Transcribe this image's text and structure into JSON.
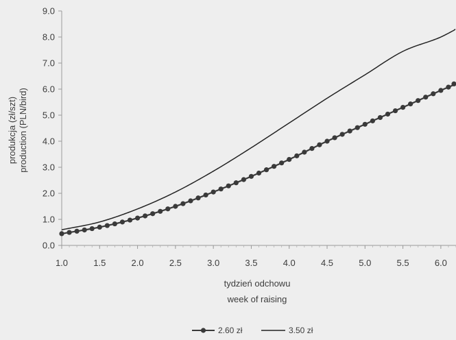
{
  "chart_data": {
    "type": "line",
    "xlabel": [
      "tydzień odchowu",
      "week of raising"
    ],
    "ylabel": [
      "produkcja (zł/szt)",
      "production (PLN/bird)"
    ],
    "xlim": [
      1.0,
      6.2
    ],
    "ylim": [
      0.0,
      9.0
    ],
    "x_ticks": [
      "1.0",
      "1.5",
      "2.0",
      "2.5",
      "3.0",
      "3.5",
      "4.0",
      "4.5",
      "5.0",
      "5.5",
      "6.0"
    ],
    "y_ticks": [
      "0.0",
      "1.0",
      "2.0",
      "3.0",
      "4.0",
      "5.0",
      "6.0",
      "7.0",
      "8.0",
      "9.0"
    ],
    "grid": false,
    "legend": "bottom-center",
    "series": [
      {
        "name": "2.60 zł",
        "color": "#3a3a3a",
        "marker": "circle",
        "x": [
          1.0,
          1.5,
          2.0,
          2.5,
          3.0,
          3.5,
          4.0,
          4.5,
          5.0,
          5.5,
          6.0,
          6.2
        ],
        "values": [
          0.45,
          0.7,
          1.05,
          1.5,
          2.05,
          2.65,
          3.3,
          4.0,
          4.65,
          5.3,
          5.95,
          6.2
        ]
      },
      {
        "name": "3.50 zł",
        "color": "#222222",
        "marker": "none",
        "x": [
          1.0,
          1.5,
          2.0,
          2.5,
          3.0,
          3.5,
          4.0,
          4.5,
          5.0,
          5.5,
          6.0,
          6.2
        ],
        "values": [
          0.6,
          0.9,
          1.4,
          2.05,
          2.85,
          3.75,
          4.7,
          5.65,
          6.55,
          7.45,
          8.0,
          8.3
        ]
      }
    ]
  }
}
